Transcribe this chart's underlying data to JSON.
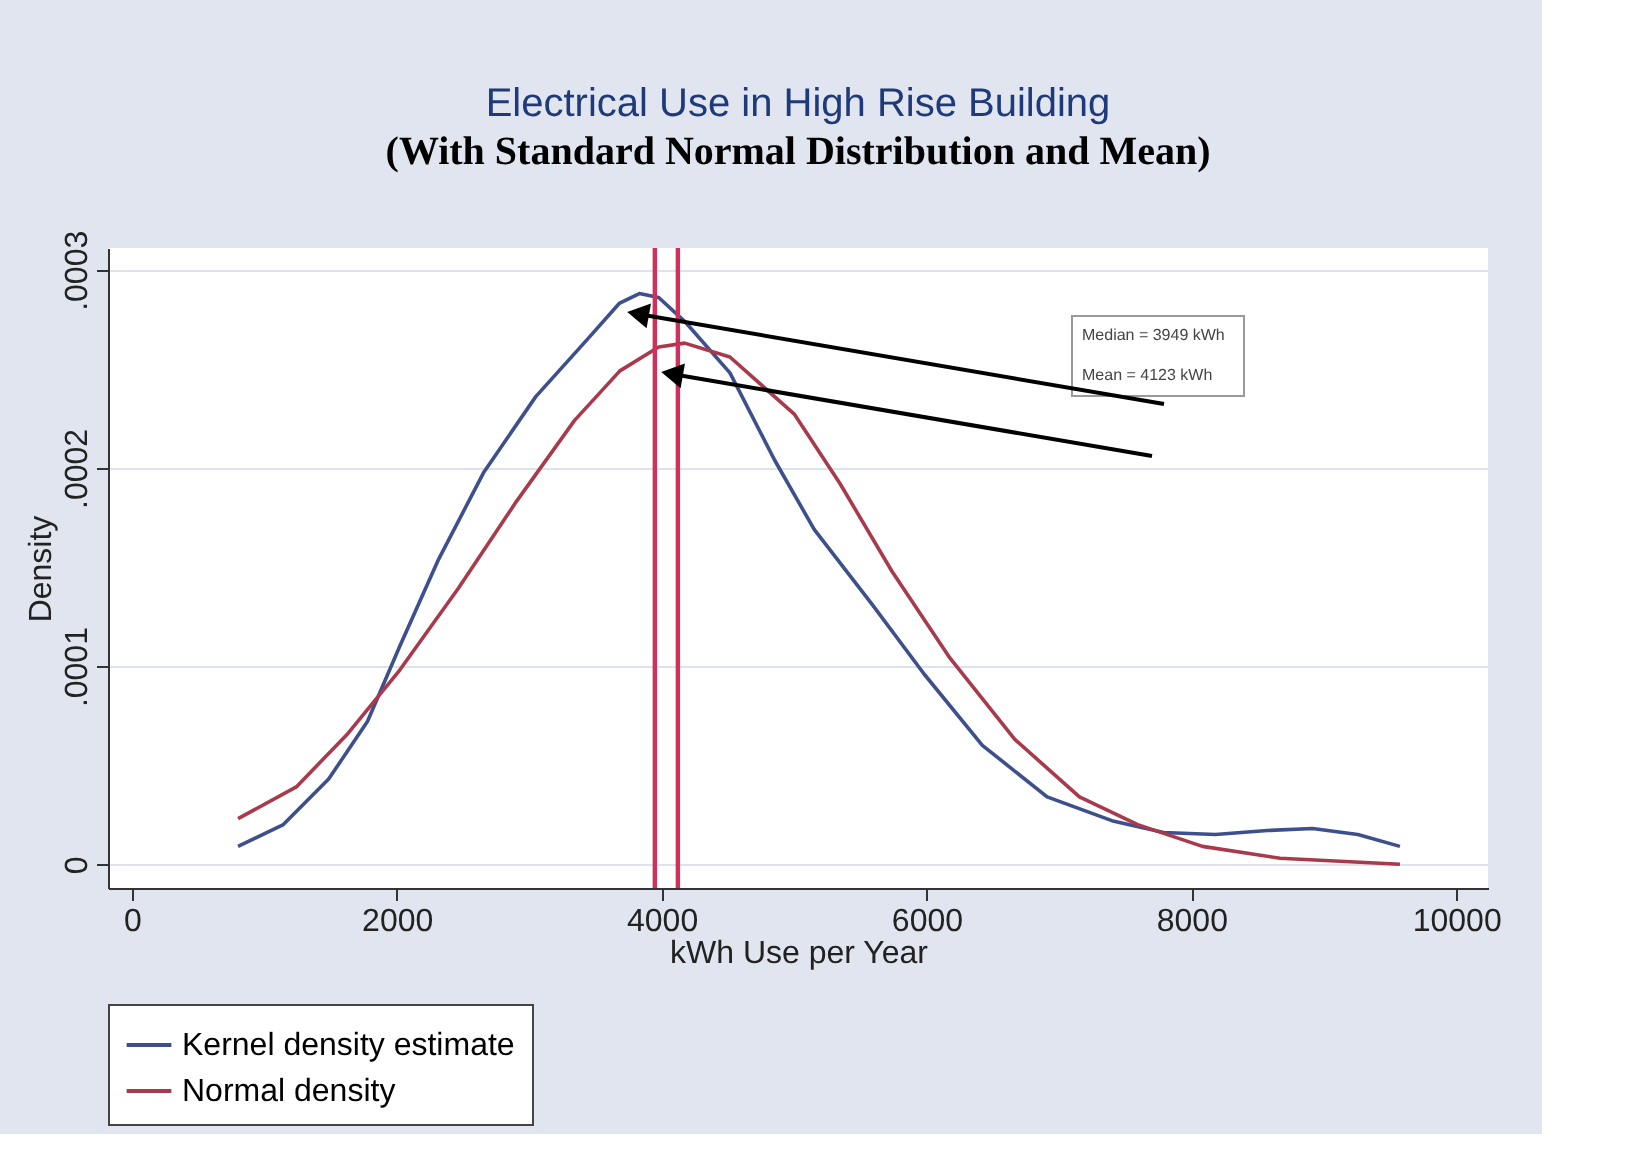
{
  "chart_data": {
    "type": "line",
    "title": "Electrical Use in High Rise Building",
    "xlabel": "kWh Use per Year",
    "ylabel": "Density",
    "x": [
      802,
      1144,
      1486,
      1779,
      2023,
      2317,
      2659,
      3050,
      3441,
      3680,
      3832,
      3978,
      4174,
      4516,
      4853,
      5152,
      5591,
      5982,
      6422,
      6911,
      7400,
      7791,
      8182,
      8573,
      8915,
      9257,
      9575
    ],
    "series": [
      {
        "name": "Kernel density estimate",
        "color": "#3d4f8c",
        "values": [
          9e-06,
          2e-05,
          4.3e-05,
          7.2e-05,
          0.00011,
          0.000154,
          0.000198,
          0.000236,
          0.000265,
          0.000283,
          0.000288,
          0.000286,
          0.000274,
          0.000248,
          0.000204,
          0.000169,
          0.000131,
          9.6e-05,
          6e-05,
          3.4e-05,
          2.2e-05,
          1.6e-05,
          1.5e-05,
          1.7e-05,
          1.8e-05,
          1.5e-05,
          9e-06
        ]
      },
      {
        "name": "Normal density",
        "color": "#a83a4c",
        "x": [
          802,
          1242,
          1632,
          2023,
          2463,
          2903,
          3343,
          3685,
          3978,
          4174,
          4516,
          5004,
          5348,
          5738,
          6178,
          6667,
          7155,
          7595,
          8084,
          8670,
          9575
        ],
        "values": [
          2.3e-05,
          3.9e-05,
          6.6e-05,
          9.8e-05,
          0.000139,
          0.000183,
          0.000224,
          0.000249,
          0.000261,
          0.000263,
          0.000256,
          0.000227,
          0.000192,
          0.000148,
          0.000104,
          6.3e-05,
          3.4e-05,
          2e-05,
          9e-06,
          3e-06,
          0
        ]
      }
    ],
    "ref_lines": [
      {
        "axis": "x",
        "value": 3949,
        "color": "#d0305a"
      },
      {
        "axis": "x",
        "value": 4123,
        "color": "#d0305a"
      }
    ],
    "annotations": [
      "(With Standard Normal Distribution and Mean)",
      "Median = 3949 kWh",
      "Mean = 4123 kWh"
    ],
    "xlim": [
      -180,
      10240
    ],
    "xticks": [
      0,
      2000,
      4000,
      6000,
      8000,
      10000
    ],
    "ylim": [
      -1.2e-05,
      0.000311
    ],
    "yticks": [
      {
        "value": 0,
        "label": "0"
      },
      {
        "value": 0.0001,
        "label": ".0001"
      },
      {
        "value": 0.0002,
        "label": ".0002"
      },
      {
        "value": 0.0003,
        "label": ".0003"
      }
    ],
    "grid": "y",
    "legend": "bottom",
    "line_style": "solid",
    "marker": "none"
  }
}
